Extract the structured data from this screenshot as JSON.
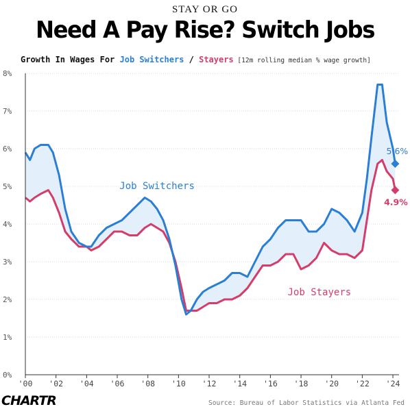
{
  "header": {
    "kicker": "STAY OR GO",
    "title": "Need A Pay Rise? Switch Jobs",
    "subtitle_lead": "Growth In Wages For ",
    "subtitle_switchers": "Job Switchers",
    "subtitle_sep": " / ",
    "subtitle_stayers": "Stayers",
    "subtitle_note": " [12m rolling median % wage growth]"
  },
  "footer": {
    "logo": "CHARTR",
    "source": "Source: Bureau of Labor Statistics via Atlanta Fed"
  },
  "chart_data": {
    "type": "line",
    "ylim": [
      0,
      8
    ],
    "xlim": [
      2000,
      2024.4
    ],
    "y_ticks": [
      0,
      1,
      2,
      3,
      4,
      5,
      6,
      7,
      8
    ],
    "y_tick_labels": [
      "0%",
      "1%",
      "2%",
      "3%",
      "4%",
      "5%",
      "6%",
      "7%",
      "8%"
    ],
    "x_ticks": [
      2000,
      2002,
      2004,
      2006,
      2008,
      2010,
      2012,
      2014,
      2016,
      2018,
      2020,
      2022,
      2024
    ],
    "x_tick_labels": [
      "'00",
      "'02",
      "'04",
      "'06",
      "'08",
      "'10",
      "'12",
      "'14",
      "'16",
      "'18",
      "'20",
      "'22",
      "'24"
    ],
    "grid": true,
    "legend": "inline labels",
    "colors": {
      "switchers": "#2a7fd4",
      "stayers": "#d43d6a",
      "fill": "#e3effa"
    },
    "series": [
      {
        "name": "Job Switchers",
        "x": [
          2000,
          2000.3,
          2000.6,
          2001,
          2001.5,
          2001.8,
          2002.2,
          2002.6,
          2003,
          2003.5,
          2004,
          2004.3,
          2004.8,
          2005.3,
          2005.8,
          2006.3,
          2006.8,
          2007.3,
          2007.8,
          2008.2,
          2008.6,
          2009,
          2009.4,
          2009.8,
          2010.2,
          2010.5,
          2010.8,
          2011.2,
          2011.6,
          2012,
          2012.5,
          2013,
          2013.5,
          2014,
          2014.5,
          2015,
          2015.5,
          2016,
          2016.5,
          2017,
          2017.5,
          2018,
          2018.5,
          2019,
          2019.5,
          2020,
          2020.5,
          2021,
          2021.5,
          2022,
          2022.3,
          2022.6,
          2023,
          2023.3,
          2023.6,
          2024,
          2024.15
        ],
        "values": [
          5.9,
          5.7,
          6.0,
          6.1,
          6.1,
          5.9,
          5.3,
          4.4,
          3.8,
          3.5,
          3.4,
          3.4,
          3.7,
          3.9,
          4.0,
          4.1,
          4.3,
          4.5,
          4.7,
          4.6,
          4.4,
          4.1,
          3.6,
          2.9,
          2.0,
          1.6,
          1.7,
          2.0,
          2.2,
          2.3,
          2.4,
          2.5,
          2.7,
          2.7,
          2.6,
          3.0,
          3.4,
          3.6,
          3.9,
          4.1,
          4.1,
          4.1,
          3.8,
          3.8,
          4.0,
          4.4,
          4.3,
          4.1,
          3.8,
          4.3,
          5.2,
          6.3,
          7.7,
          7.7,
          6.7,
          6.0,
          5.6
        ]
      },
      {
        "name": "Job Stayers",
        "x": [
          2000,
          2000.3,
          2000.6,
          2001,
          2001.5,
          2001.8,
          2002.2,
          2002.6,
          2003,
          2003.5,
          2004,
          2004.3,
          2004.8,
          2005.3,
          2005.8,
          2006.3,
          2006.8,
          2007.3,
          2007.8,
          2008.2,
          2008.6,
          2009,
          2009.4,
          2009.8,
          2010.2,
          2010.5,
          2010.8,
          2011.2,
          2011.6,
          2012,
          2012.5,
          2013,
          2013.5,
          2014,
          2014.5,
          2015,
          2015.5,
          2016,
          2016.5,
          2017,
          2017.5,
          2018,
          2018.5,
          2019,
          2019.5,
          2020,
          2020.5,
          2021,
          2021.5,
          2022,
          2022.3,
          2022.6,
          2023,
          2023.3,
          2023.6,
          2024,
          2024.15
        ],
        "values": [
          4.7,
          4.6,
          4.7,
          4.8,
          4.9,
          4.7,
          4.3,
          3.8,
          3.6,
          3.4,
          3.4,
          3.3,
          3.4,
          3.6,
          3.8,
          3.8,
          3.7,
          3.7,
          3.9,
          4.0,
          3.9,
          3.8,
          3.5,
          3.0,
          2.3,
          1.7,
          1.7,
          1.7,
          1.8,
          1.9,
          1.9,
          2.0,
          2.0,
          2.1,
          2.3,
          2.6,
          2.9,
          2.9,
          3.0,
          3.2,
          3.2,
          2.8,
          2.9,
          3.1,
          3.5,
          3.3,
          3.2,
          3.2,
          3.1,
          3.3,
          4.1,
          4.9,
          5.6,
          5.7,
          5.4,
          5.2,
          4.9
        ]
      }
    ],
    "annotations": {
      "switchers_label": "Job Switchers",
      "stayers_label": "Job Stayers",
      "switchers_end": "5.6%",
      "stayers_end": "4.9%"
    }
  }
}
